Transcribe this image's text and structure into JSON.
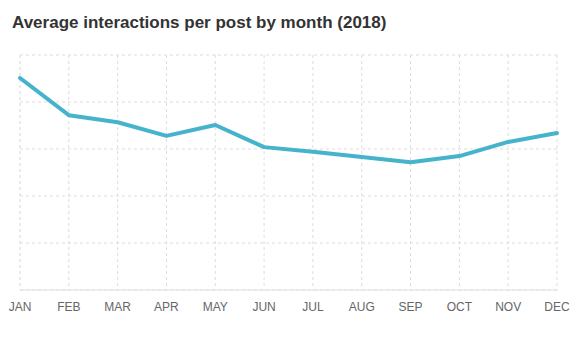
{
  "chart_data": {
    "type": "line",
    "title": "Average interactions per post by month (2018)",
    "categories": [
      "JAN",
      "FEB",
      "MAR",
      "APR",
      "MAY",
      "JUN",
      "JUL",
      "AUG",
      "SEP",
      "OCT",
      "NOV",
      "DEC"
    ],
    "values": [
      4.51,
      3.72,
      3.57,
      3.28,
      3.51,
      3.04,
      2.94,
      2.83,
      2.72,
      2.85,
      3.15,
      3.34
    ],
    "color": "#45b3cc",
    "ylim": [
      0,
      5
    ],
    "yticks": [
      0,
      1,
      2,
      3,
      4,
      5
    ],
    "grid": true,
    "tick_labels": "x"
  }
}
